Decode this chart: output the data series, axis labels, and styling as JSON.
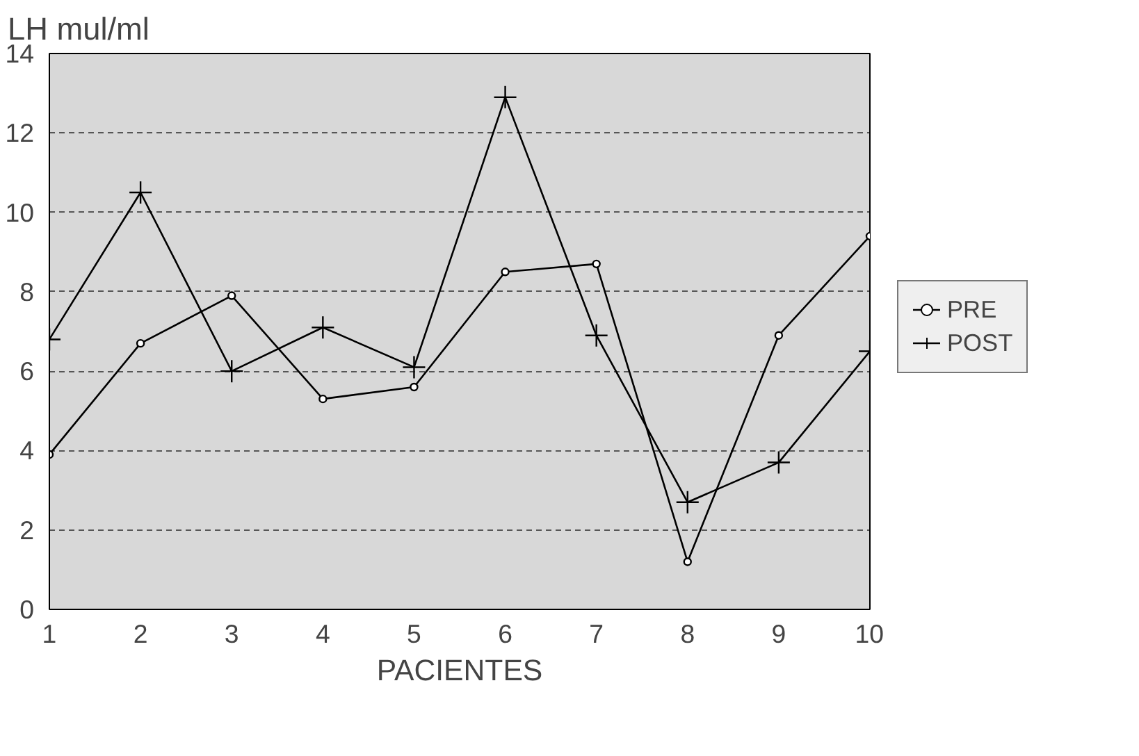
{
  "chart_data": {
    "type": "line",
    "ylabel": "LH mul/ml",
    "xlabel": "PACIENTES",
    "x": [
      1,
      2,
      3,
      4,
      5,
      6,
      7,
      8,
      9,
      10
    ],
    "series": [
      {
        "name": "PRE",
        "color": "#000000",
        "marker": "circle",
        "values": [
          3.9,
          6.7,
          7.9,
          5.3,
          5.6,
          8.5,
          8.7,
          1.2,
          6.9,
          9.4
        ]
      },
      {
        "name": "POST",
        "color": "#000000",
        "marker": "cross",
        "values": [
          6.8,
          10.5,
          6.0,
          7.1,
          6.1,
          12.9,
          6.9,
          2.7,
          3.7,
          6.5
        ]
      }
    ],
    "xlim": [
      1,
      10
    ],
    "xticks": [
      1,
      2,
      3,
      4,
      5,
      6,
      7,
      8,
      9,
      10
    ],
    "ylim": [
      0,
      14
    ],
    "yticks": [
      0,
      2,
      4,
      6,
      8,
      10,
      12,
      14
    ],
    "grid": "y",
    "legend": "right",
    "line_style": "solid"
  }
}
